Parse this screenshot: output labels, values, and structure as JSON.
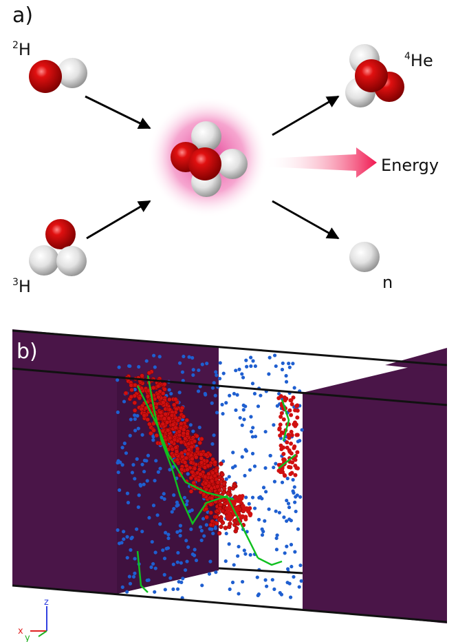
{
  "panel_a": {
    "label": "a)",
    "reactants": [
      {
        "mass": "2",
        "symbol": "H"
      },
      {
        "mass": "3",
        "symbol": "H"
      }
    ],
    "products": [
      {
        "mass": "4",
        "symbol": "He"
      },
      {
        "symbol": "n"
      }
    ],
    "energy": "Energy"
  },
  "panel_b": {
    "label": "b)",
    "axes": {
      "z": "z",
      "x": "x",
      "y": "y"
    }
  }
}
